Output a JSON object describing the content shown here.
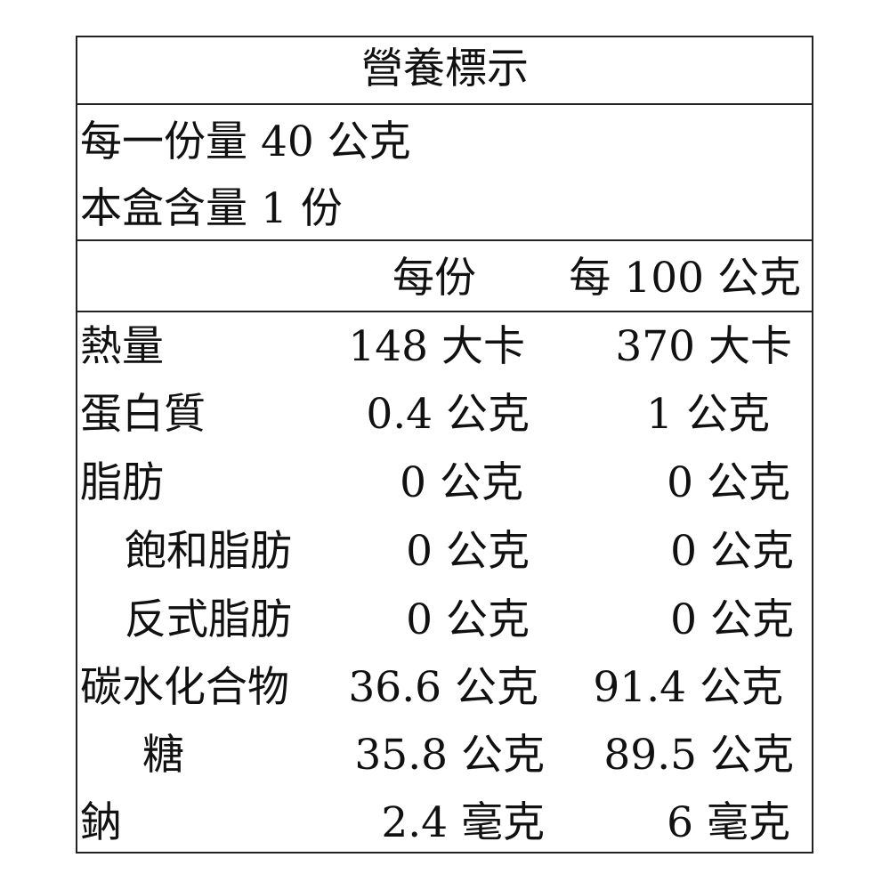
{
  "title": "營養標示",
  "serving_size": "每一份量 40 公克",
  "servings_per_box": "本盒含量 1 份",
  "header": {
    "per_serving": "每份",
    "per_100g": "每 100 公克"
  },
  "rows": [
    {
      "name": "熱量",
      "per_serving": "148 大卡",
      "per_100g": "370 大卡"
    },
    {
      "name": "蛋白質",
      "per_serving": "0.4 公克",
      "per_100g": "1 公克"
    },
    {
      "name": "脂肪",
      "per_serving": "0 公克",
      "per_100g": "0 公克"
    },
    {
      "name": "飽和脂肪",
      "per_serving": "0 公克",
      "per_100g": "0 公克"
    },
    {
      "name": "反式脂肪",
      "per_serving": "0 公克",
      "per_100g": "0 公克"
    },
    {
      "name": "碳水化合物",
      "per_serving": "36.6 公克",
      "per_100g": "91.4 公克"
    },
    {
      "name": "糖",
      "per_serving": "35.8 公克",
      "per_100g": "89.5 公克"
    },
    {
      "name": "鈉",
      "per_serving": "2.4 毫克",
      "per_100g": "6 毫克"
    }
  ]
}
